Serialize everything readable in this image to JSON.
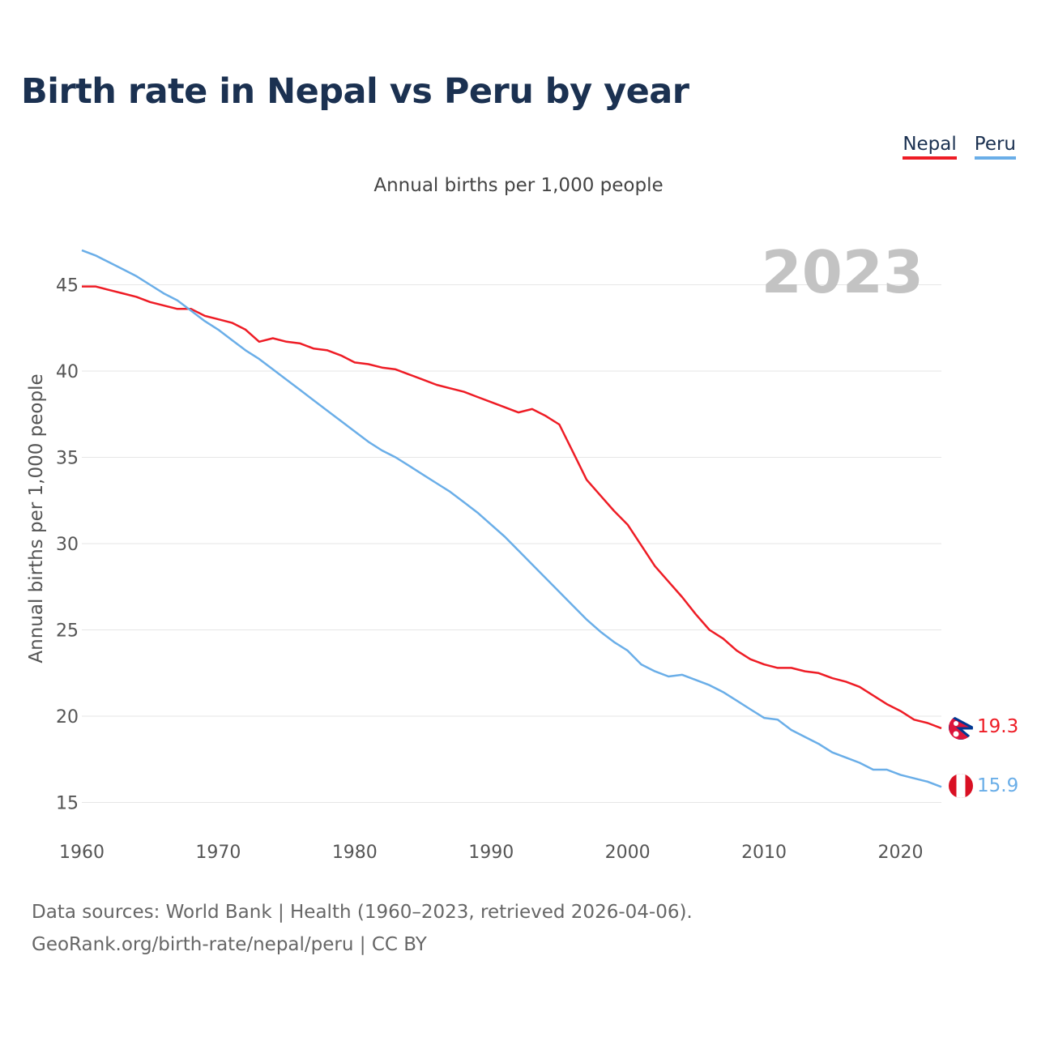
{
  "title": "Birth rate in Nepal vs Peru by year",
  "subtitle": "Annual births per 1,000 people",
  "legend": [
    {
      "name": "Nepal",
      "color": "#ee1c25"
    },
    {
      "name": "Peru",
      "color": "#6aaee8"
    }
  ],
  "footer": {
    "line1": "Data sources: World Bank | Health (1960–2023, retrieved 2026-04-06).",
    "line2": "GeoRank.org/birth-rate/nepal/peru | CC BY"
  },
  "chart_data": {
    "type": "line",
    "title": "Birth rate in Nepal vs Peru by year",
    "ylabel": "Annual births per 1,000 people",
    "xlabel": "",
    "year_label": "2023",
    "xlim": [
      1960,
      2023
    ],
    "ylim": [
      14,
      48
    ],
    "x_ticks": [
      1960,
      1970,
      1980,
      1990,
      2000,
      2010,
      2020
    ],
    "y_ticks": [
      15,
      20,
      25,
      30,
      35,
      40,
      45
    ],
    "grid": true,
    "x": [
      1960,
      1961,
      1962,
      1963,
      1964,
      1965,
      1966,
      1967,
      1968,
      1969,
      1970,
      1971,
      1972,
      1973,
      1974,
      1975,
      1976,
      1977,
      1978,
      1979,
      1980,
      1981,
      1982,
      1983,
      1984,
      1985,
      1986,
      1987,
      1988,
      1989,
      1990,
      1991,
      1992,
      1993,
      1994,
      1995,
      1996,
      1997,
      1998,
      1999,
      2000,
      2001,
      2002,
      2003,
      2004,
      2005,
      2006,
      2007,
      2008,
      2009,
      2010,
      2011,
      2012,
      2013,
      2014,
      2015,
      2016,
      2017,
      2018,
      2019,
      2020,
      2021,
      2022,
      2023
    ],
    "series": [
      {
        "name": "Nepal",
        "color": "#ee1c25",
        "end_label": "19.3",
        "values": [
          44.9,
          44.9,
          44.7,
          44.5,
          44.3,
          44.0,
          43.8,
          43.6,
          43.6,
          43.2,
          43.0,
          42.8,
          42.4,
          41.7,
          41.9,
          41.7,
          41.6,
          41.3,
          41.2,
          40.9,
          40.5,
          40.4,
          40.2,
          40.1,
          39.8,
          39.5,
          39.2,
          39.0,
          38.8,
          38.5,
          38.2,
          37.9,
          37.6,
          37.8,
          37.4,
          36.9,
          35.3,
          33.7,
          32.8,
          31.9,
          31.1,
          29.9,
          28.7,
          27.8,
          26.9,
          25.9,
          25.0,
          24.5,
          23.8,
          23.3,
          23.0,
          22.8,
          22.8,
          22.6,
          22.5,
          22.2,
          22.0,
          21.7,
          21.2,
          20.7,
          20.3,
          19.8,
          19.6,
          19.3
        ]
      },
      {
        "name": "Peru",
        "color": "#6aaee8",
        "end_label": "15.9",
        "values": [
          47.0,
          46.7,
          46.3,
          45.9,
          45.5,
          45.0,
          44.5,
          44.1,
          43.5,
          42.9,
          42.4,
          41.8,
          41.2,
          40.7,
          40.1,
          39.5,
          38.9,
          38.3,
          37.7,
          37.1,
          36.5,
          35.9,
          35.4,
          35.0,
          34.5,
          34.0,
          33.5,
          33.0,
          32.4,
          31.8,
          31.1,
          30.4,
          29.6,
          28.8,
          28.0,
          27.2,
          26.4,
          25.6,
          24.9,
          24.3,
          23.8,
          23.0,
          22.6,
          22.3,
          22.4,
          22.1,
          21.8,
          21.4,
          20.9,
          20.4,
          19.9,
          19.8,
          19.2,
          18.8,
          18.4,
          17.9,
          17.6,
          17.3,
          16.9,
          16.9,
          16.6,
          16.4,
          16.2,
          15.9
        ]
      }
    ]
  }
}
